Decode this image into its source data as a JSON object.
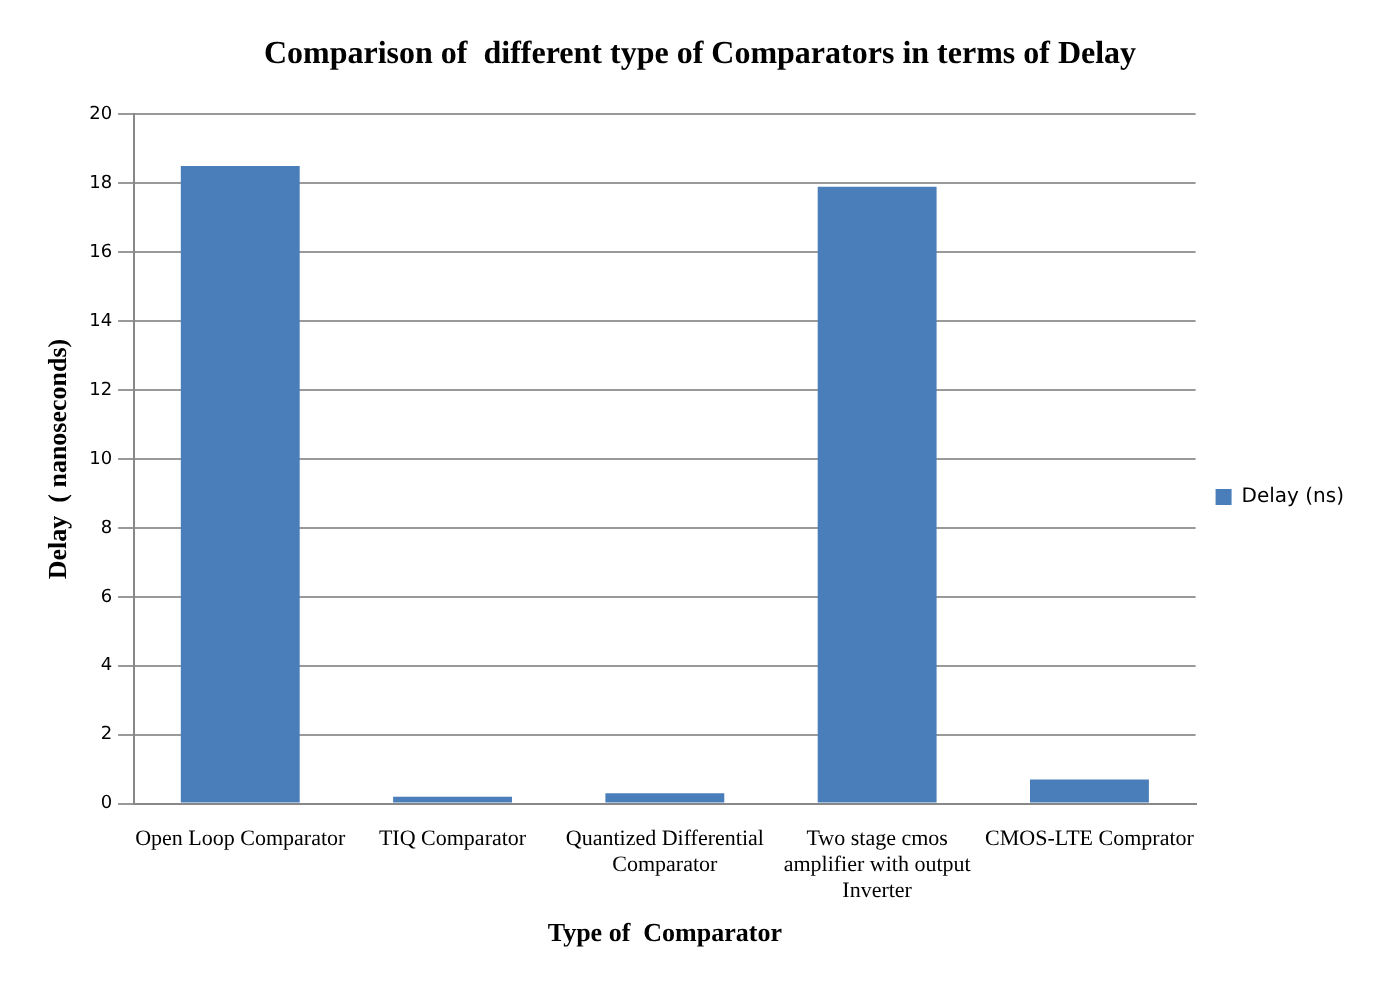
{
  "chart_data": {
    "type": "bar",
    "title": "Comparison of  different type of Comparators in terms of Delay",
    "xlabel": "Type of  Comparator",
    "ylabel": "Delay  ( nanoseconds)",
    "categories": [
      "Open Loop Comparator",
      "TIQ Comparator",
      "Quantized Differential Comparator",
      "Two stage cmos amplifier with output Inverter",
      "CMOS-LTE Comprator"
    ],
    "series": [
      {
        "name": "Delay (ns)",
        "color": "#4a7ebb",
        "values": [
          18.5,
          0.2,
          0.3,
          17.9,
          0.7
        ]
      }
    ],
    "ylim": [
      0,
      20
    ],
    "yticks": [
      0,
      2,
      4,
      6,
      8,
      10,
      12,
      14,
      16,
      18,
      20
    ],
    "grid": "y",
    "legend": "right"
  }
}
